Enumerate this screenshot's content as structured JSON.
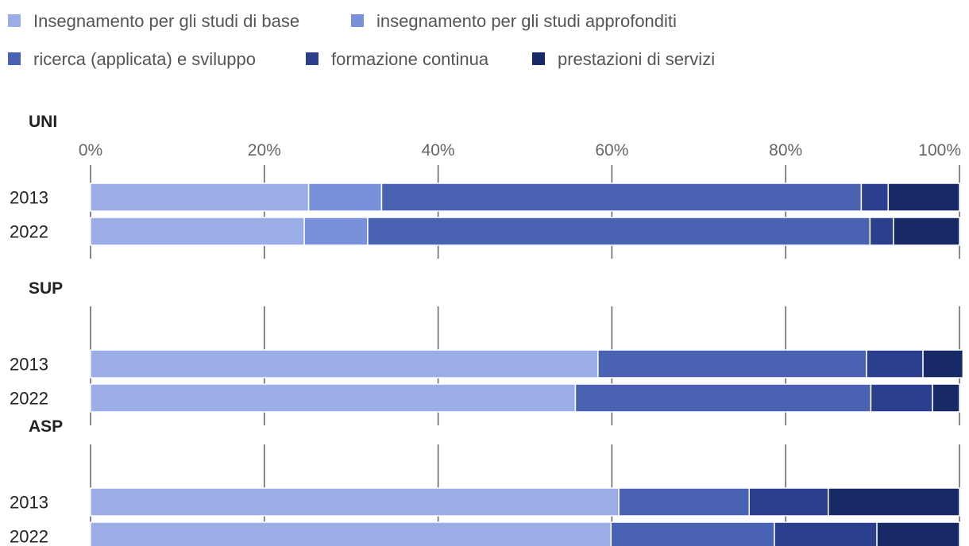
{
  "chart_data": {
    "type": "bar",
    "orientation": "horizontal",
    "stacked": true,
    "normalized": true,
    "xlim": [
      0,
      100
    ],
    "x_ticks": [
      "0%",
      "20%",
      "40%",
      "60%",
      "80%",
      "100%"
    ],
    "legend_position": "top",
    "series": [
      {
        "name": "Insegnamento per gli studi di base",
        "color": "#9badE6"
      },
      {
        "name": "insegnamento per gli studi approfonditi",
        "color": "#7891DA"
      },
      {
        "name": "ricerca (applicata) e sviluppo",
        "color": "#4A62B2"
      },
      {
        "name": "formazione continua",
        "color": "#2C3F8C"
      },
      {
        "name": "prestazioni di servizi",
        "color": "#172A66"
      }
    ],
    "groups": [
      {
        "title": "UNI",
        "rows": [
          {
            "label": "2013",
            "values": [
              25.1,
              8.4,
              55.2,
              3.1,
              8.2
            ]
          },
          {
            "label": "2022",
            "values": [
              24.6,
              7.3,
              57.8,
              2.7,
              7.6
            ]
          }
        ]
      },
      {
        "title": "SUP",
        "rows": [
          {
            "label": "2013",
            "values": [
              58.4,
              0,
              30.9,
              6.5,
              4.6
            ]
          },
          {
            "label": "2022",
            "values": [
              55.8,
              0,
              34.0,
              7.1,
              3.1
            ]
          }
        ]
      },
      {
        "title": "ASP",
        "rows": [
          {
            "label": "2013",
            "values": [
              60.8,
              0,
              15.0,
              9.1,
              15.1
            ]
          },
          {
            "label": "2022",
            "values": [
              59.9,
              0,
              18.8,
              11.8,
              9.5
            ]
          }
        ]
      }
    ]
  }
}
